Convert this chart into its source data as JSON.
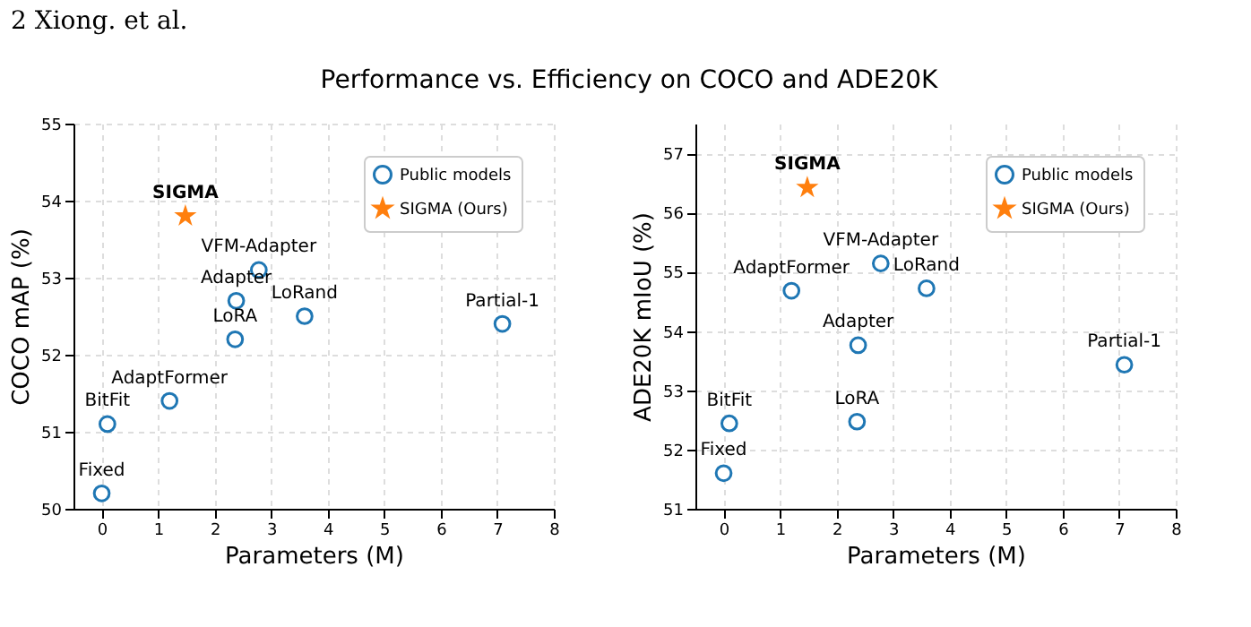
{
  "chart_data": [
    {
      "type": "scatter",
      "title": "Performance vs. Efficiency on COCO and ADE20K",
      "xlabel": "Parameters (M)",
      "ylabel": "COCO mAP (%)",
      "x": [
        0,
        0.1,
        1.2,
        2.36,
        2.38,
        2.78,
        3.59,
        7.09
      ],
      "series": [
        {
          "name": "Public models",
          "type": "scatter",
          "marker": "circle",
          "color": "#1f77b4",
          "values": [
            50.2,
            51.1,
            51.4,
            52.2,
            52.7,
            53.1,
            52.5,
            52.4
          ]
        },
        {
          "name": "SIGMA (Ours)",
          "type": "scatter",
          "marker": "star",
          "color": "#ff7f0e",
          "x": [
            1.48
          ],
          "values": [
            53.8
          ]
        }
      ],
      "annotations": [
        "2 Xiong. et al.",
        {
          "text": "Fixed",
          "x": 0,
          "y": 50.2
        },
        {
          "text": "BitFit",
          "x": 0.1,
          "y": 51.1
        },
        {
          "text": "AdaptFormer",
          "x": 1.2,
          "y": 51.4
        },
        {
          "text": "LoRA",
          "x": 2.36,
          "y": 52.2
        },
        {
          "text": "Adapter",
          "x": 2.38,
          "y": 52.7
        },
        {
          "text": "VFM-Adapter",
          "x": 2.78,
          "y": 53.1
        },
        {
          "text": "LoRand",
          "x": 3.59,
          "y": 52.5
        },
        {
          "text": "Partial-1",
          "x": 7.09,
          "y": 52.4
        },
        {
          "text": "SIGMA",
          "x": 1.48,
          "y": 53.8
        }
      ],
      "xlim": [
        -0.5,
        8
      ],
      "xticks": [
        0,
        1,
        2,
        3,
        4,
        5,
        6,
        7,
        8
      ],
      "ylim": [
        50,
        55
      ],
      "yticks": [
        50,
        51,
        52,
        53,
        54,
        55
      ],
      "grid": true,
      "legend": "top right"
    },
    {
      "type": "scatter",
      "xlabel": "Parameters (M)",
      "ylabel": "ADE20K mIoU (%)",
      "x": [
        0,
        0.1,
        1.2,
        2.36,
        2.38,
        2.78,
        3.59,
        7.09
      ],
      "series": [
        {
          "name": "Public models",
          "type": "scatter",
          "marker": "circle",
          "color": "#1f77b4",
          "values": [
            51.6,
            52.44,
            54.68,
            52.47,
            53.76,
            55.14,
            54.72,
            53.43
          ]
        },
        {
          "name": "SIGMA (Ours)",
          "type": "scatter",
          "marker": "star",
          "color": "#ff7f0e",
          "x": [
            1.48
          ],
          "values": [
            56.42
          ]
        }
      ],
      "annotations": [
        {
          "text": "Fixed",
          "x": 0,
          "y": 51.6
        },
        {
          "text": "BitFit",
          "x": 0.1,
          "y": 52.44
        },
        {
          "text": "AdaptFormer",
          "x": 1.2,
          "y": 54.68
        },
        {
          "text": "LoRA",
          "x": 2.36,
          "y": 52.47
        },
        {
          "text": "Adapter",
          "x": 2.38,
          "y": 53.76
        },
        {
          "text": "VFM-Adapter",
          "x": 2.78,
          "y": 55.14
        },
        {
          "text": "LoRand",
          "x": 3.59,
          "y": 54.72
        },
        {
          "text": "Partial-1",
          "x": 7.09,
          "y": 53.43
        },
        {
          "text": "SIGMA",
          "x": 1.48,
          "y": 56.42
        }
      ],
      "xlim": [
        -0.5,
        8
      ],
      "xticks": [
        0,
        1,
        2,
        3,
        4,
        5,
        6,
        7,
        8
      ],
      "ylim": [
        51,
        57.5
      ],
      "yticks": [
        51,
        52,
        53,
        54,
        55,
        56,
        57
      ],
      "grid": true,
      "legend": "top right"
    }
  ]
}
